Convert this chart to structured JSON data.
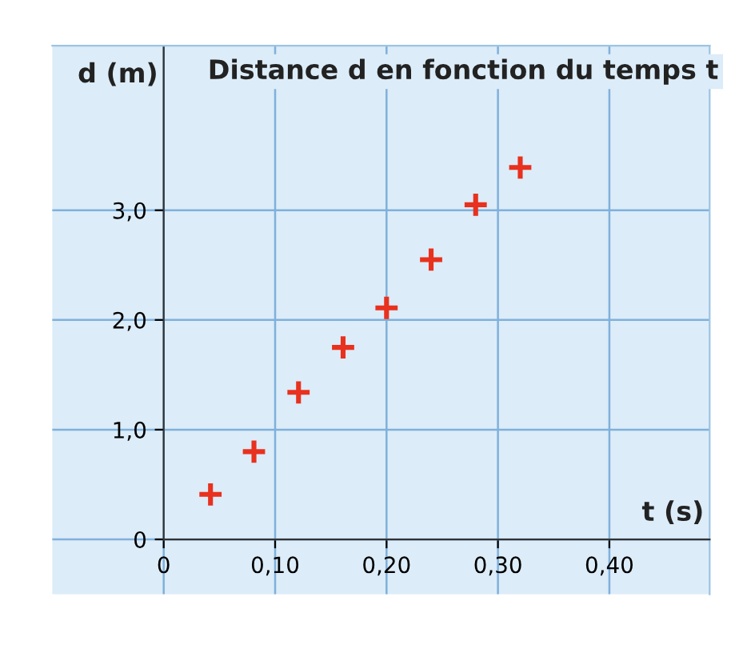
{
  "chart_data": {
    "type": "scatter",
    "title": "Distance d en fonction du temps t",
    "xlabel": "t (s)",
    "ylabel": "d (m)",
    "x": [
      0.042,
      0.081,
      0.121,
      0.161,
      0.2,
      0.24,
      0.28,
      0.32
    ],
    "series": [
      {
        "color": "#e8311e",
        "values": [
          0.41,
          0.8,
          1.34,
          1.75,
          2.11,
          2.55,
          3.05,
          3.39
        ]
      }
    ],
    "xlim": [
      -0.1,
      0.49
    ],
    "ylim": [
      -0.5,
      4.5
    ],
    "xticks": [
      0,
      {
        "value": 0.1,
        "label": "0,10"
      },
      {
        "value": 0.2,
        "label": "0,20"
      },
      {
        "value": 0.3,
        "label": "0,30"
      },
      {
        "value": 0.4,
        "label": "0,40"
      }
    ],
    "yticks": [
      0,
      {
        "value": 1,
        "label": "1,0"
      },
      {
        "value": 2,
        "label": "2,0"
      },
      {
        "value": 3,
        "label": "3,0"
      }
    ],
    "grid": true,
    "marker": "cross"
  }
}
